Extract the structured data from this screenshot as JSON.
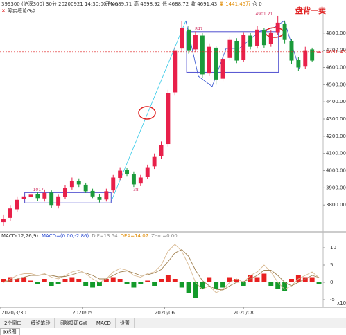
{
  "header": {
    "symbol": "399300 (沪深300) 30分 20200921 14:30:00 Mon",
    "open": "开 4689.71",
    "high": "高 4698.92",
    "low": "低 4688.72",
    "close": "收 4691.43",
    "volume": "量 1441.45万",
    "position": "仓 0",
    "indicator": "筹实缠论G点"
  },
  "chart_data": [
    {
      "type": "candlestick",
      "annotation": "盘背一卖",
      "xlim": [
        0,
        47
      ],
      "ylim": [
        3644,
        4936
      ],
      "xticks": [
        {
          "value": 0,
          "label": "2020/3/30"
        },
        {
          "value": 12,
          "label": "2020/05"
        },
        {
          "value": 24,
          "label": "2020/06"
        },
        {
          "value": 35.5,
          "label": "2020/08"
        }
      ],
      "yticks": [
        {
          "value": 3800,
          "label": "3800.00"
        },
        {
          "value": 3900,
          "label": "3900.00"
        },
        {
          "value": 4000,
          "label": "4000.00"
        },
        {
          "value": 4100,
          "label": "4100.00"
        },
        {
          "value": 4200,
          "label": "4200.00"
        },
        {
          "value": 4300,
          "label": "4300.00"
        },
        {
          "value": 4400,
          "label": "4400.00"
        },
        {
          "value": 4500,
          "label": "4500.00"
        },
        {
          "value": 4600,
          "label": "4600.00"
        },
        {
          "value": 4700,
          "label": "4700.00"
        },
        {
          "value": 4800,
          "label": "4800.00"
        }
      ],
      "last_price": 4691.43,
      "up_color": "#e8204a",
      "down_color": "#1a9a3a",
      "open": [
        3700,
        3725,
        3775,
        3835,
        3848,
        3865,
        3838,
        3872,
        3798,
        3848,
        3905,
        3938,
        3918,
        3882,
        3848,
        3832,
        3885,
        3958,
        4005,
        3978,
        3925,
        3962,
        4025,
        4085,
        4155,
        4455,
        4710,
        4820,
        4705,
        4785,
        4565,
        4715,
        4535,
        4655,
        4755,
        4645,
        4785,
        4725,
        4815,
        4735,
        4805,
        4855,
        4755,
        4645,
        4605,
        4705,
        4689.71
      ],
      "high": [
        3745,
        3800,
        3850,
        3870,
        3880,
        3875,
        3890,
        3885,
        3860,
        3915,
        3960,
        3955,
        3930,
        3895,
        3865,
        3895,
        3975,
        4020,
        4015,
        3995,
        3975,
        4035,
        4100,
        4170,
        4470,
        4720,
        4870,
        4840,
        4810,
        4800,
        4740,
        4725,
        4670,
        4780,
        4770,
        4805,
        4800,
        4840,
        4830,
        4815,
        4900,
        4870,
        4765,
        4660,
        4720,
        4715,
        4698.92
      ],
      "low": [
        3680,
        3705,
        3760,
        3820,
        3835,
        3825,
        3820,
        3785,
        3780,
        3835,
        3890,
        3905,
        3870,
        3840,
        3815,
        3820,
        3870,
        3945,
        3965,
        3905,
        3910,
        3950,
        4010,
        4070,
        4140,
        4440,
        4690,
        4680,
        4690,
        4540,
        4550,
        4500,
        4520,
        4640,
        4625,
        4630,
        4705,
        4710,
        4715,
        4720,
        4790,
        4740,
        4620,
        4580,
        4590,
        4630,
        4688.72
      ],
      "close": [
        3720,
        3780,
        3830,
        3850,
        3860,
        3840,
        3870,
        3800,
        3850,
        3900,
        3940,
        3920,
        3880,
        3850,
        3830,
        3880,
        3960,
        4000,
        3980,
        3920,
        3960,
        4020,
        4080,
        4150,
        4450,
        4700,
        4830,
        4700,
        4790,
        4560,
        4720,
        4530,
        4650,
        4760,
        4640,
        4790,
        4720,
        4820,
        4730,
        4800,
        4860,
        4760,
        4640,
        4600,
        4700,
        4640,
        4691.43
      ],
      "boxes": [
        {
          "label": "1017",
          "x": [
            3.6,
            16.2
          ],
          "y": [
            3812,
            3872
          ]
        },
        {
          "label": "847",
          "x": [
            27.2,
            40.6
          ],
          "y": [
            4572,
            4808
          ]
        }
      ],
      "notes": [
        {
          "label": "4901.21",
          "x": 38.5,
          "y": 4901.21
        },
        {
          "label": "38",
          "x": 19.8,
          "y": 3880
        }
      ]
    },
    {
      "type": "macd",
      "title": "MACD(12,26,9)",
      "legend": [
        {
          "label": "MACD=(0.00,-2.86)",
          "color": "#2a4bd0"
        },
        {
          "label": "DIF=13.54",
          "color": "#888888"
        },
        {
          "label": "DEA=14.07",
          "color": "#e08a00"
        },
        {
          "label": "Zero=0.00",
          "color": "#888888"
        }
      ],
      "scale_note": "x10",
      "xlim": [
        0,
        47
      ],
      "ylim": [
        -6.4,
        12
      ],
      "yticks": [
        -5,
        0,
        5,
        10
      ],
      "up_color": "#e82020",
      "down_color": "#139a2a",
      "values": [
        1,
        1.5,
        1,
        1.5,
        0.5,
        -0.5,
        1,
        -1,
        -0.5,
        1,
        1.5,
        1,
        -1,
        -1.5,
        -1,
        1,
        1.5,
        1,
        -0.5,
        -1.5,
        -0.5,
        0.5,
        -1,
        1,
        2,
        1,
        -1.5,
        -3,
        -4.5,
        -2,
        1.5,
        -2,
        -1.5,
        1.5,
        1,
        -1,
        2,
        1.5,
        2.5,
        -1,
        -2,
        -2.5,
        1,
        2,
        1.5,
        1.5,
        -0.5
      ],
      "series": [
        {
          "name": "DIF",
          "color": "#d8b890",
          "values": [
            0,
            1,
            2,
            2.5,
            2.5,
            2,
            2.5,
            1.5,
            1,
            2,
            3,
            3.5,
            2.5,
            1,
            0,
            1,
            3,
            4,
            3.5,
            2,
            1.5,
            2.5,
            3,
            5,
            9,
            11,
            9,
            5,
            0,
            -2,
            -1,
            -3,
            -2,
            0,
            1,
            0,
            2,
            3,
            5,
            3,
            0,
            -2,
            -1,
            1,
            2,
            3,
            1.35
          ]
        },
        {
          "name": "DEA",
          "color": "#a08050",
          "values": [
            0,
            0.5,
            1,
            1.5,
            2,
            2,
            2.2,
            2,
            1.6,
            1.7,
            2.2,
            2.8,
            2.7,
            2,
            1,
            1,
            2,
            3,
            3.3,
            2.7,
            2,
            2.2,
            2.7,
            3.7,
            6,
            8.5,
            9.5,
            7.5,
            3.5,
            0.5,
            -1,
            -2,
            -2.2,
            -1,
            0,
            0.2,
            1,
            2,
            3.5,
            3.5,
            2,
            0,
            -1,
            0,
            1,
            2,
            1.4
          ]
        }
      ]
    }
  ],
  "tabs": [
    "2个窗口",
    "缠论笔段",
    "间隙投研G点",
    "MACD",
    "设置"
  ],
  "view_tab": "K线图"
}
